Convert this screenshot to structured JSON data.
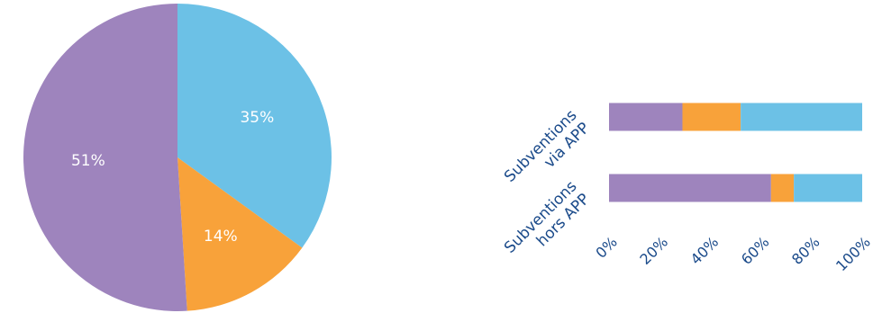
{
  "chart_data": [
    {
      "type": "pie",
      "slices": [
        {
          "value": 35,
          "label": "35%",
          "color": "#6cc1e6"
        },
        {
          "value": 14,
          "label": "14%",
          "color": "#f8a23a"
        },
        {
          "value": 51,
          "label": "51%",
          "color": "#9e84bd"
        }
      ]
    },
    {
      "type": "bar",
      "orientation": "horizontal",
      "stacked": true,
      "categories": [
        {
          "lines": [
            "Subventions",
            "via APP"
          ]
        },
        {
          "lines": [
            "Subventions",
            "hors APP"
          ]
        }
      ],
      "series": [
        {
          "color": "#9e84bd",
          "values": [
            29,
            64
          ]
        },
        {
          "color": "#f8a23a",
          "values": [
            23,
            9
          ]
        },
        {
          "color": "#6cc1e6",
          "values": [
            48,
            27
          ]
        }
      ],
      "xlim": [
        0,
        100
      ],
      "tick_labels": [
        "0%",
        "20%",
        "40%",
        "60%",
        "80%",
        "100%"
      ],
      "grid": false,
      "legend": false
    }
  ]
}
